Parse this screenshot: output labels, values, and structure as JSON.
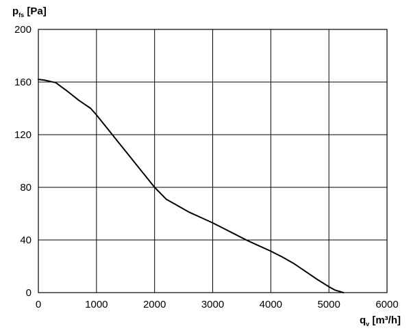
{
  "chart_data": {
    "type": "line",
    "title": "",
    "ylabel_main": "p",
    "ylabel_sub": "fs",
    "ylabel_unit": " [Pa]",
    "xlabel_main": "q",
    "xlabel_sub": "v",
    "xlabel_unit": " [m³/h]",
    "xlim": [
      0,
      6000
    ],
    "ylim": [
      0,
      200
    ],
    "x_ticks": [
      0,
      1000,
      2000,
      3000,
      4000,
      5000,
      6000
    ],
    "y_ticks": [
      0,
      40,
      80,
      120,
      160,
      200
    ],
    "grid": true,
    "line_color": "#000000",
    "grid_color": "#000000",
    "series": [
      {
        "x": [
          0,
          100,
          300,
          500,
          700,
          900,
          1000,
          1200,
          1400,
          1600,
          1800,
          2000,
          2200,
          2400,
          2600,
          2800,
          3000,
          3200,
          3400,
          3600,
          3800,
          4000,
          4200,
          4400,
          4600,
          4800,
          5000,
          5100,
          5250
        ],
        "y": [
          162,
          161.5,
          159.5,
          153,
          146,
          140,
          135,
          124,
          113,
          102,
          91,
          80,
          71,
          66,
          61,
          57,
          53,
          48.5,
          44,
          39.5,
          35.5,
          31.5,
          27,
          22,
          16,
          10,
          4.5,
          2,
          0
        ]
      }
    ]
  }
}
